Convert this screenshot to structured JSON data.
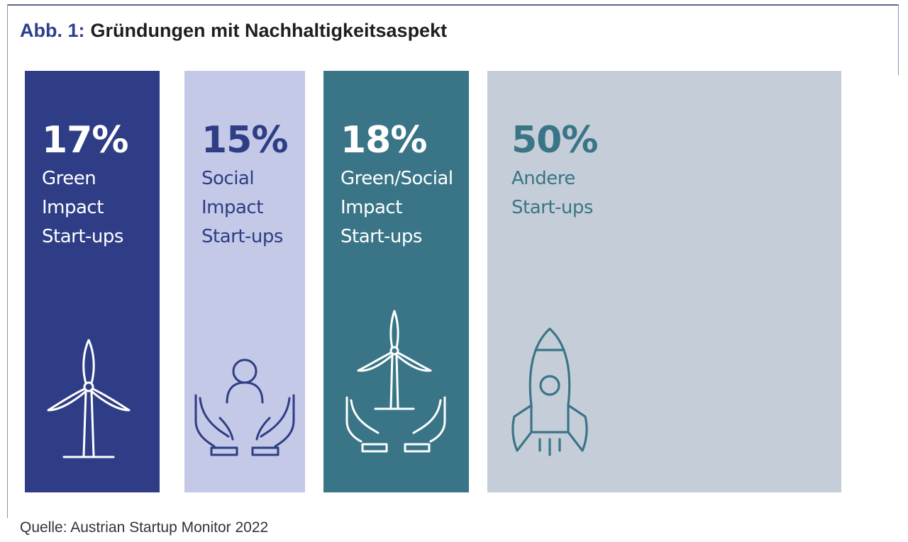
{
  "title": {
    "prefix": "Abb. 1:",
    "text": "Gründungen mit Nachhaltigkeitsaspekt"
  },
  "source": "Quelle: Austrian Startup Monitor 2022",
  "chart_data": {
    "type": "bar",
    "title": "Gründungen mit Nachhaltigkeitsaspekt",
    "unit": "%",
    "categories": [
      "Green Impact Start-ups",
      "Social Impact Start-ups",
      "Green/Social Impact Start-ups",
      "Andere Start-ups"
    ],
    "values": [
      17,
      15,
      18,
      50
    ],
    "cards": [
      {
        "value": "17%",
        "label_lines": [
          "Green",
          "Impact",
          "Start-ups"
        ],
        "icon": "wind-turbine-icon",
        "bg": "#2e3d85",
        "fg": "#ffffff"
      },
      {
        "value": "15%",
        "label_lines": [
          "Social",
          "Impact",
          "Start-ups"
        ],
        "icon": "person-in-hands-icon",
        "bg": "#c3c9e6",
        "fg": "#2e3d85"
      },
      {
        "value": "18%",
        "label_lines": [
          "Green/Social",
          "Impact",
          "Start-ups"
        ],
        "icon": "turbine-in-hands-icon",
        "bg": "#3a7587",
        "fg": "#ffffff"
      },
      {
        "value": "50%",
        "label_lines": [
          "Andere",
          "Start-ups"
        ],
        "icon": "rocket-icon",
        "bg": "#c5ced8",
        "fg": "#3a7587"
      }
    ]
  }
}
